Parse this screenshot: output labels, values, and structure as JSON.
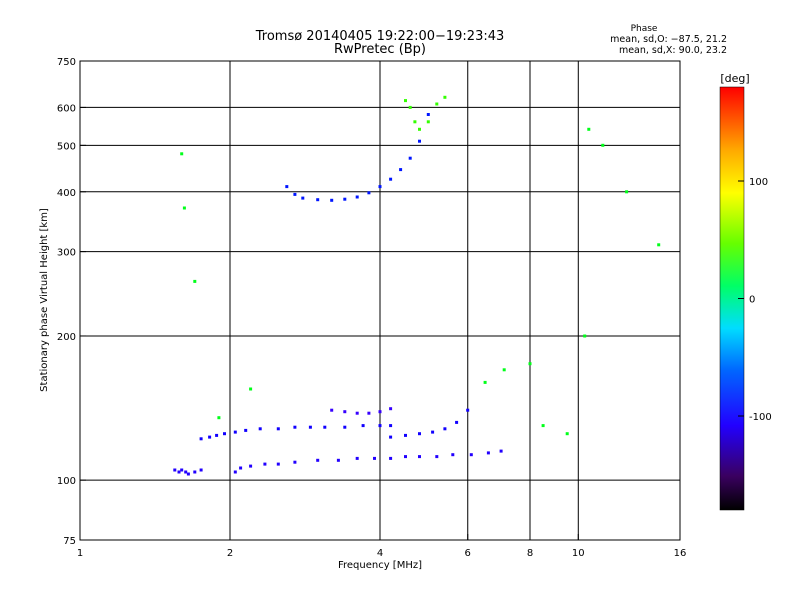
{
  "chart_data": {
    "type": "scatter",
    "title": "Tromsø 20140405 19:22:00−19:23:43",
    "subtitle": "RwPretec (Bp)",
    "phase_info": {
      "heading": "Phase",
      "line_o": "mean, sd,O: −87.5, 21.2",
      "line_x": "mean, sd,X:  90.0, 23.2"
    },
    "xlabel": "Frequency [MHz]",
    "ylabel": "Stationary phase Virtual Height [km]",
    "x_scale": "log",
    "y_scale": "log",
    "xlim": [
      1,
      16
    ],
    "ylim": [
      75,
      750
    ],
    "x_ticks": [
      1,
      2,
      4,
      6,
      8,
      10,
      16
    ],
    "y_ticks": [
      75,
      100,
      200,
      300,
      400,
      500,
      600,
      750
    ],
    "grid_x": [
      2,
      4,
      6,
      8,
      10
    ],
    "grid_y": [
      100,
      200,
      300,
      400,
      500,
      600
    ],
    "colorbar": {
      "label": "[deg]",
      "range": [
        -180,
        180
      ],
      "ticks": [
        100,
        0,
        -100
      ]
    },
    "series": [
      {
        "x": [
          1.55,
          1.58,
          1.6,
          1.63,
          1.65,
          1.7,
          1.75
        ],
        "y": [
          105,
          104,
          105,
          104,
          103,
          104,
          105
        ],
        "phase": -95
      },
      {
        "x": [
          2.05,
          2.1,
          2.2,
          2.35,
          2.5,
          2.7,
          3.0,
          3.3,
          3.6,
          3.9,
          4.2,
          4.5,
          4.8,
          5.2,
          5.6,
          6.1,
          6.6,
          7.0
        ],
        "y": [
          104,
          106,
          107,
          108,
          108,
          109,
          110,
          110,
          111,
          111,
          111,
          112,
          112,
          112,
          113,
          113,
          114,
          115
        ],
        "phase": -95
      },
      {
        "x": [
          1.75,
          1.82,
          1.88,
          1.95,
          2.05,
          2.15,
          2.3,
          2.5,
          2.7,
          2.9,
          3.1,
          3.4,
          3.7,
          4.0,
          4.2
        ],
        "y": [
          122,
          123,
          124,
          125,
          126,
          127,
          128,
          128,
          129,
          129,
          129,
          129,
          130,
          130,
          130
        ],
        "phase": -90
      },
      {
        "x": [
          3.2,
          3.4,
          3.6,
          3.8,
          4.0,
          4.2
        ],
        "y": [
          140,
          139,
          138,
          138,
          139,
          141
        ],
        "phase": -100
      },
      {
        "x": [
          4.2,
          4.5,
          4.8,
          5.1,
          5.4,
          5.7,
          6.0
        ],
        "y": [
          123,
          124,
          125,
          126,
          128,
          132,
          140
        ],
        "phase": -90
      },
      {
        "x": [
          2.6,
          2.7,
          2.8,
          3.0,
          3.2,
          3.4,
          3.6,
          3.8,
          4.0,
          4.2,
          4.4,
          4.6,
          4.8,
          5.0
        ],
        "y": [
          410,
          395,
          388,
          385,
          384,
          386,
          390,
          398,
          410,
          425,
          445,
          470,
          510,
          580
        ],
        "phase": -80
      },
      {
        "x": [
          4.5,
          4.6,
          4.7,
          4.8,
          5.0,
          5.2,
          5.4
        ],
        "y": [
          620,
          600,
          560,
          540,
          560,
          610,
          630
        ],
        "phase": 60
      },
      {
        "x": [
          1.6,
          1.62,
          1.7,
          1.9,
          2.2,
          6.5,
          7.1,
          8.0,
          8.5,
          9.5,
          10.3,
          10.5,
          11.2,
          12.5,
          14.5
        ],
        "y": [
          480,
          370,
          260,
          135,
          155,
          160,
          170,
          175,
          130,
          125,
          200,
          540,
          500,
          400,
          310
        ],
        "phase": 40
      }
    ]
  }
}
